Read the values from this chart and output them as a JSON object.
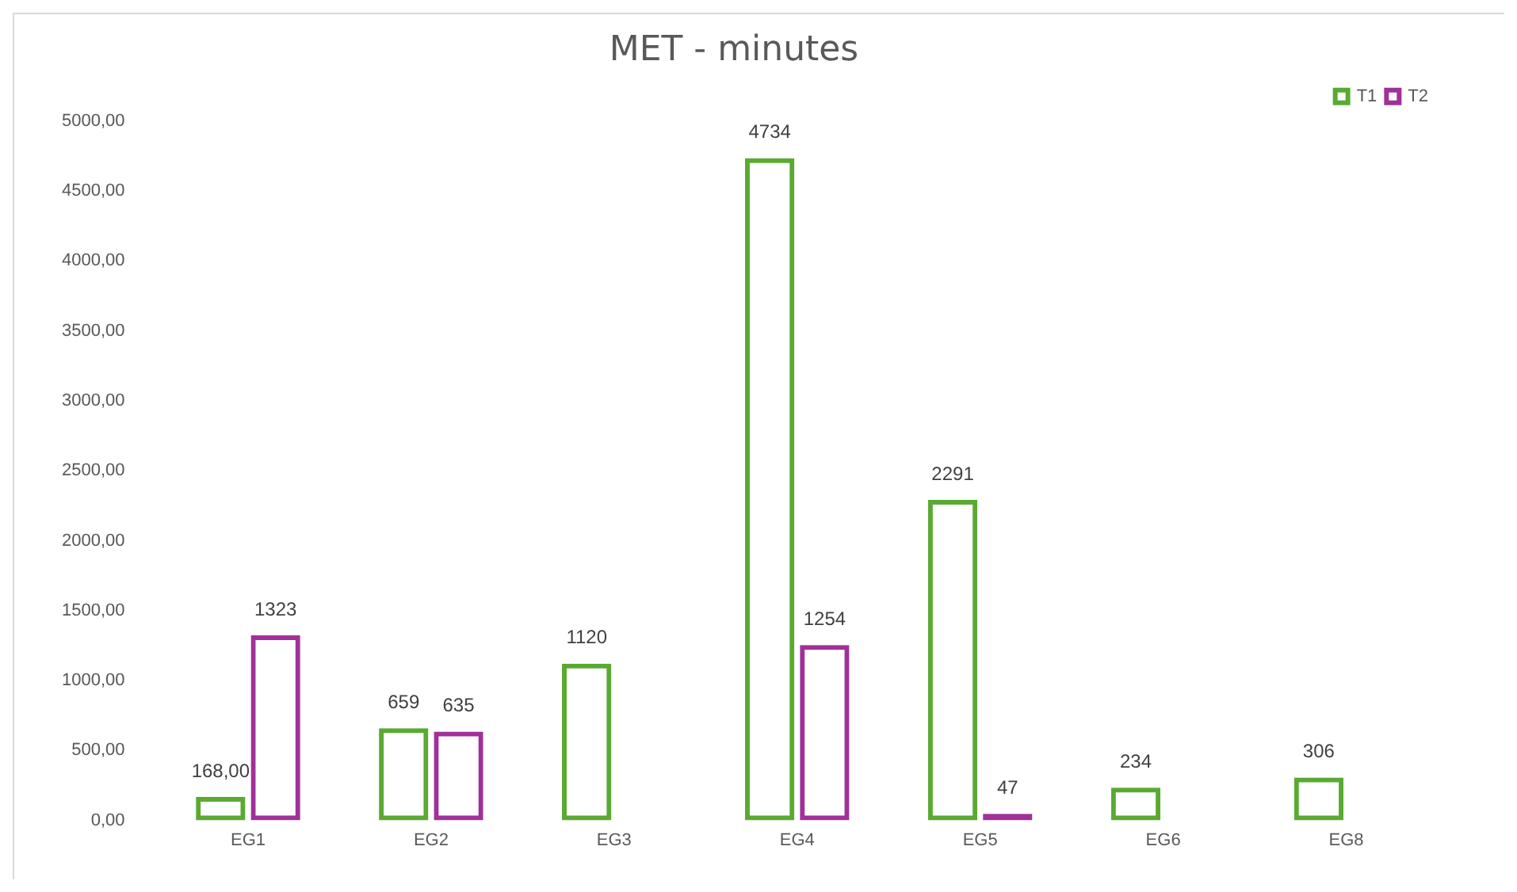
{
  "chart_data": {
    "type": "bar",
    "title": "MET - minutes",
    "categories": [
      "EG1",
      "EG2",
      "EG3",
      "EG4",
      "EG5",
      "EG6",
      "EG8"
    ],
    "series": [
      {
        "name": "T1",
        "color": "#5aaa32",
        "values": [
          168,
          659,
          1120,
          4734,
          2291,
          234,
          306
        ],
        "value_labels": [
          "168,00",
          "659",
          "1120",
          "4734",
          "2291",
          "234",
          "306"
        ]
      },
      {
        "name": "T2",
        "color": "#a0309a",
        "values": [
          1323,
          635,
          null,
          1254,
          47,
          null,
          null
        ],
        "value_labels": [
          "1323",
          "635",
          null,
          "1254",
          "47",
          null,
          null
        ]
      }
    ],
    "ylim": [
      0,
      5000
    ],
    "yticks": [
      {
        "value": 0,
        "label": "0,00"
      },
      {
        "value": 500,
        "label": "500,00"
      },
      {
        "value": 1000,
        "label": "1000,00"
      },
      {
        "value": 1500,
        "label": "1500,00"
      },
      {
        "value": 2000,
        "label": "2000,00"
      },
      {
        "value": 2500,
        "label": "2500,00"
      },
      {
        "value": 3000,
        "label": "3000,00"
      },
      {
        "value": 3500,
        "label": "3500,00"
      },
      {
        "value": 4000,
        "label": "4000,00"
      },
      {
        "value": 4500,
        "label": "4500,00"
      },
      {
        "value": 5000,
        "label": "5000,00"
      }
    ],
    "grid": false,
    "legend": "top right"
  }
}
